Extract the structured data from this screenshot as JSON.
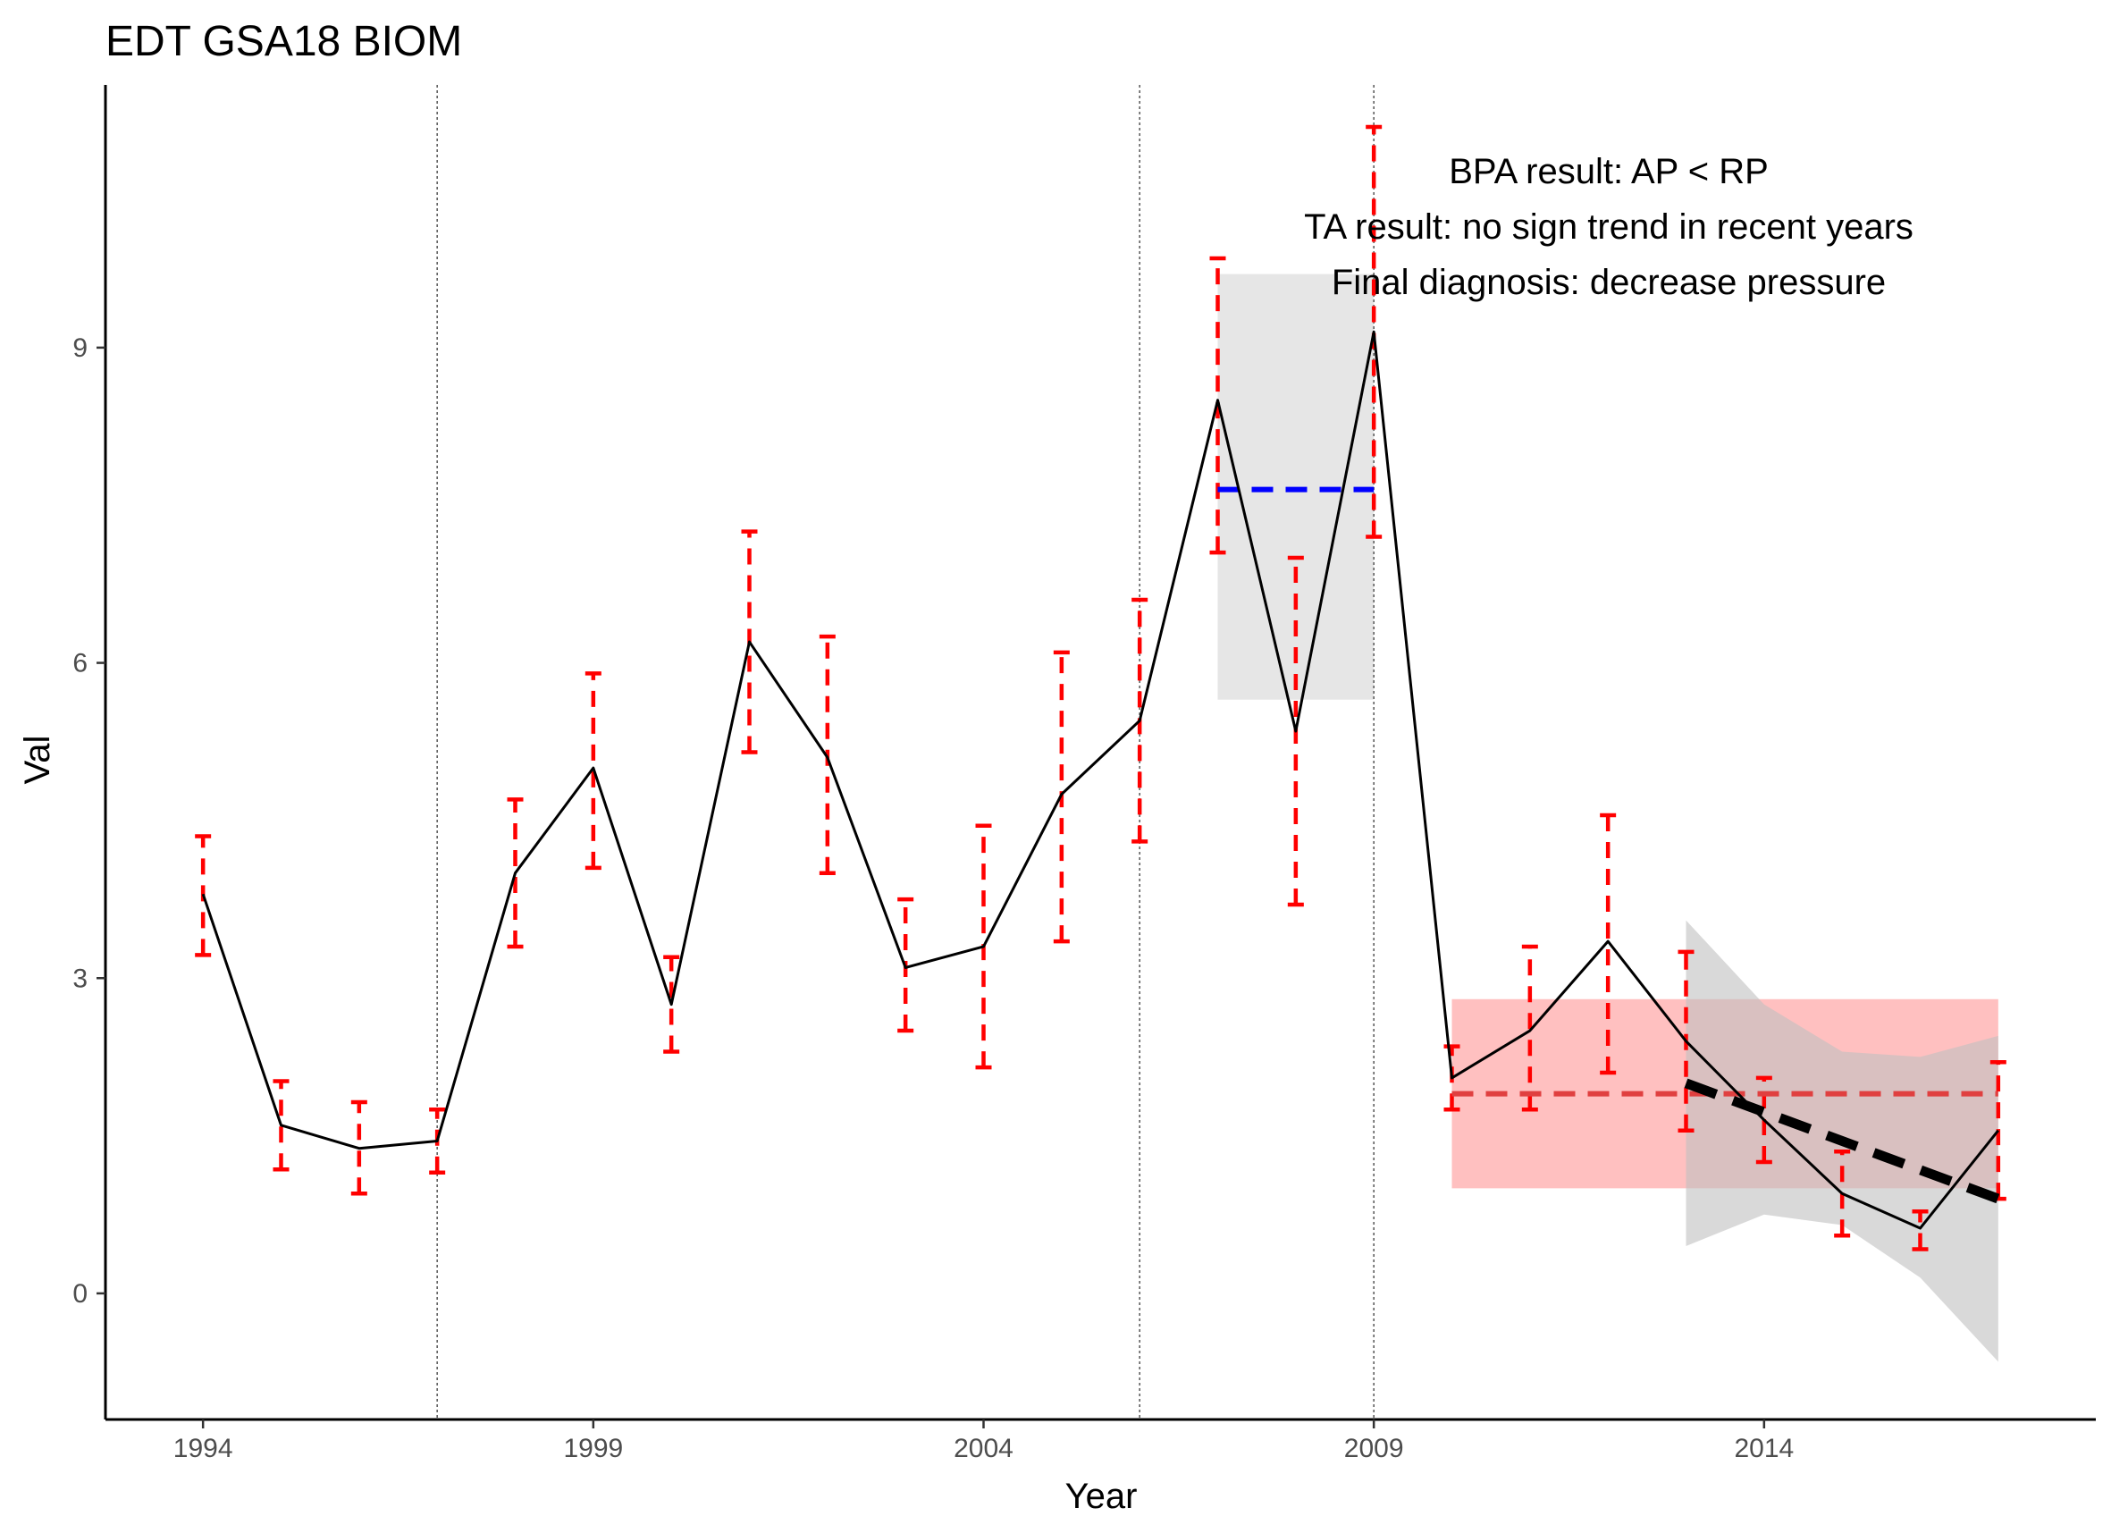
{
  "chart_data": {
    "type": "line",
    "title": "EDT GSA18 BIOM",
    "xlabel": "Year",
    "ylabel": "Val",
    "xlim": [
      1992.75,
      2018.25
    ],
    "ylim": [
      -1.2,
      11.5
    ],
    "x_ticks": [
      1994,
      1999,
      2004,
      2009,
      2014
    ],
    "y_ticks": [
      0,
      3,
      6,
      9
    ],
    "grid": false,
    "series": [
      {
        "x": [
          1994,
          1995,
          1996,
          1997,
          1998,
          1999,
          2000,
          2001,
          2002,
          2003,
          2004,
          2005,
          2006,
          2007,
          2008,
          2009,
          2010,
          2011,
          2012,
          2013,
          2014,
          2015,
          2016,
          2017
        ],
        "values": [
          3.8,
          1.6,
          1.38,
          1.45,
          4.0,
          5.0,
          2.75,
          6.2,
          5.1,
          3.1,
          3.3,
          4.75,
          5.45,
          8.5,
          5.35,
          9.15,
          2.05,
          2.5,
          3.35,
          2.4,
          1.65,
          0.95,
          0.62,
          1.55
        ],
        "lower": [
          3.22,
          1.18,
          0.95,
          1.15,
          3.3,
          4.05,
          2.3,
          5.15,
          4.0,
          2.5,
          2.15,
          3.35,
          4.3,
          7.05,
          3.7,
          7.2,
          1.75,
          1.75,
          2.1,
          1.55,
          1.25,
          0.55,
          0.42,
          0.9
        ],
        "upper": [
          4.35,
          2.02,
          1.82,
          1.75,
          4.7,
          5.9,
          3.2,
          7.25,
          6.25,
          3.75,
          4.45,
          6.1,
          6.6,
          9.85,
          7.0,
          11.1,
          2.35,
          3.3,
          4.55,
          3.25,
          2.05,
          1.35,
          0.78,
          2.2
        ]
      }
    ],
    "vlines": [
      1997,
      2006,
      2009
    ],
    "reference_period": {
      "x": [
        2007,
        2009
      ],
      "mean": 7.65,
      "low": 5.65,
      "high": 9.7
    },
    "assessment_period": {
      "x": [
        2010,
        2017
      ],
      "mean": 1.9,
      "low": 1.0,
      "high": 2.8
    },
    "trend": {
      "x": [
        2013,
        2017
      ],
      "y": [
        2.0,
        0.9
      ],
      "band_x": [
        2013,
        2014,
        2015,
        2016,
        2017
      ],
      "band_low": [
        0.45,
        0.75,
        0.65,
        0.15,
        -0.65
      ],
      "band_high": [
        3.55,
        2.75,
        2.3,
        2.25,
        2.45
      ]
    },
    "annotations": [
      "BPA result: AP < RP",
      "TA result: no sign trend in recent years",
      "Final diagnosis: decrease pressure"
    ],
    "colors": {
      "line": "#000000",
      "error_bars": "#ff0000",
      "reference_mean": "#0000ff",
      "reference_band": "#e6e6e6",
      "assessment_band": "#ffc0c0",
      "assessment_mean": "#e04040",
      "trend_line": "#000000",
      "trend_band": "#bfbfbf",
      "vline": "#555555"
    }
  }
}
